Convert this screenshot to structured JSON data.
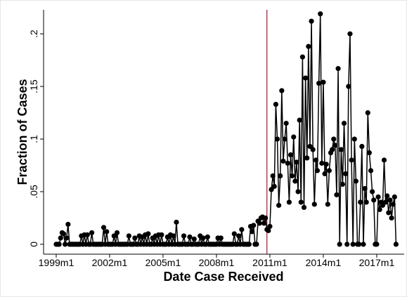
{
  "chart_data": {
    "type": "line",
    "x_label": "Date Case Received",
    "y_label": "Fraction of Cases",
    "x": [
      468,
      469,
      470,
      471,
      472,
      473,
      474,
      475,
      476,
      477,
      478,
      479,
      480,
      481,
      482,
      483,
      484,
      485,
      486,
      487,
      488,
      489,
      490,
      491,
      492,
      493,
      494,
      495,
      496,
      497,
      498,
      499,
      500,
      501,
      502,
      503,
      504,
      505,
      506,
      507,
      508,
      509,
      510,
      511,
      512,
      513,
      514,
      515,
      516,
      517,
      518,
      519,
      520,
      521,
      522,
      523,
      524,
      525,
      526,
      527,
      528,
      529,
      530,
      531,
      532,
      533,
      534,
      535,
      536,
      537,
      538,
      539,
      540,
      541,
      542,
      543,
      544,
      545,
      546,
      547,
      548,
      549,
      550,
      551,
      552,
      553,
      554,
      555,
      556,
      557,
      558,
      559,
      560,
      561,
      562,
      563,
      564,
      565,
      566,
      567,
      568,
      569,
      570,
      571,
      572,
      573,
      574,
      575,
      576,
      577,
      578,
      579,
      580,
      581,
      582,
      583,
      584,
      585,
      586,
      587,
      588,
      589,
      590,
      591,
      592,
      593,
      594,
      595,
      596,
      597,
      598,
      599,
      600,
      601,
      602,
      603,
      604,
      605,
      606,
      607,
      608,
      609,
      610,
      611,
      612,
      613,
      614,
      615,
      616,
      617,
      618,
      619,
      620,
      621,
      622,
      623,
      624,
      625,
      626,
      627,
      628,
      629,
      630,
      631,
      632,
      633,
      634,
      635,
      636,
      637,
      638,
      639,
      640,
      641,
      642,
      643,
      644,
      645,
      646,
      647,
      648,
      649,
      650,
      651,
      652,
      653,
      654,
      655,
      656,
      657,
      658,
      659,
      660,
      661,
      662,
      663,
      664,
      665,
      666,
      667,
      668,
      669,
      670,
      671,
      672,
      673,
      674,
      675,
      676,
      677,
      678,
      679,
      680,
      681,
      682,
      683,
      684,
      685,
      686,
      687,
      688,
      689,
      690,
      691,
      692,
      693,
      694,
      695,
      696,
      697
    ],
    "series": [
      {
        "color": "#000000",
        "values": [
          0,
          0,
          0,
          0.006,
          0.011,
          0.01,
          0,
          0.006,
          0.019,
          0,
          0,
          0,
          0,
          0,
          0,
          0,
          0,
          0.008,
          0,
          0.009,
          0,
          0.009,
          0,
          0,
          0.011,
          0,
          0,
          0,
          0,
          0,
          0,
          0,
          0.016,
          0,
          0.012,
          0,
          0,
          0,
          0,
          0.008,
          0,
          0.011,
          0,
          0,
          0,
          0,
          0,
          0,
          0,
          0.008,
          0,
          0,
          0,
          0.006,
          0,
          0,
          0.008,
          0,
          0.007,
          0,
          0.009,
          0,
          0.01,
          0,
          0,
          0.006,
          0,
          0.008,
          0,
          0.009,
          0,
          0.009,
          0,
          0,
          0,
          0.007,
          0,
          0.009,
          0,
          0.008,
          0,
          0.021,
          0,
          0,
          0,
          0,
          0.008,
          0,
          0,
          0,
          0.007,
          0,
          0,
          0.005,
          0,
          0,
          0,
          0.008,
          0,
          0.006,
          0,
          0,
          0.007,
          0,
          0,
          0,
          0,
          0,
          0,
          0.006,
          0,
          0.006,
          0,
          0,
          0,
          0,
          0,
          0,
          0,
          0,
          0.01,
          0,
          0,
          0.008,
          0,
          0.014,
          0,
          0,
          0,
          0,
          0,
          0.017,
          0.012,
          0.018,
          0,
          0,
          0.022,
          0.02,
          0.025,
          0.026,
          0.02,
          0.025,
          0.014,
          0.013,
          0.017,
          0.052,
          0.065,
          0.055,
          0.133,
          0.1,
          0.037,
          0.065,
          0.146,
          0.079,
          0.1,
          0.115,
          0.077,
          0.04,
          0.085,
          0.065,
          0.102,
          0.06,
          0.078,
          0.05,
          0.118,
          0.04,
          0.178,
          0.035,
          0.158,
          0.082,
          0.188,
          0.093,
          0.212,
          0.09,
          0.038,
          0.08,
          0.07,
          0.153,
          0.219,
          0.077,
          0.154,
          0.067,
          0.076,
          0.038,
          0.07,
          0.087,
          0.09,
          0.1,
          0.094,
          0.047,
          0.167,
          0,
          0.09,
          0.057,
          0.115,
          0.067,
          0,
          0.15,
          0.2,
          0.08,
          0,
          0.1,
          0.06,
          0,
          0,
          0.04,
          0.093,
          0,
          0.053,
          0.04,
          0.125,
          0.087,
          0.07,
          0.05,
          0.042,
          0,
          0,
          0.045,
          0.033,
          0.04,
          0.037,
          0.08,
          0.04,
          0.046,
          0.03,
          0.042,
          0.025,
          0.038,
          0.045,
          0
        ]
      }
    ],
    "xlim": [
      459.5,
      702.5
    ],
    "xticks": [
      {
        "value": 468,
        "label": "1999m1"
      },
      {
        "value": 504,
        "label": "2002m1"
      },
      {
        "value": 540,
        "label": "2005m1"
      },
      {
        "value": 576,
        "label": "2008m1"
      },
      {
        "value": 612,
        "label": "2011m1"
      },
      {
        "value": 648,
        "label": "2014m1"
      },
      {
        "value": 684,
        "label": "2017m1"
      }
    ],
    "ylim": [
      -0.0094,
      0.2228
    ],
    "yticks": [
      0,
      {
        "value": 0.05,
        "label": ".05"
      },
      {
        "value": 0.1,
        "label": ".1"
      },
      {
        "value": 0.15,
        "label": ".15"
      },
      {
        "value": 0.2,
        "label": ".2"
      }
    ],
    "xline": 610,
    "xline_color": "#9b1b30"
  }
}
